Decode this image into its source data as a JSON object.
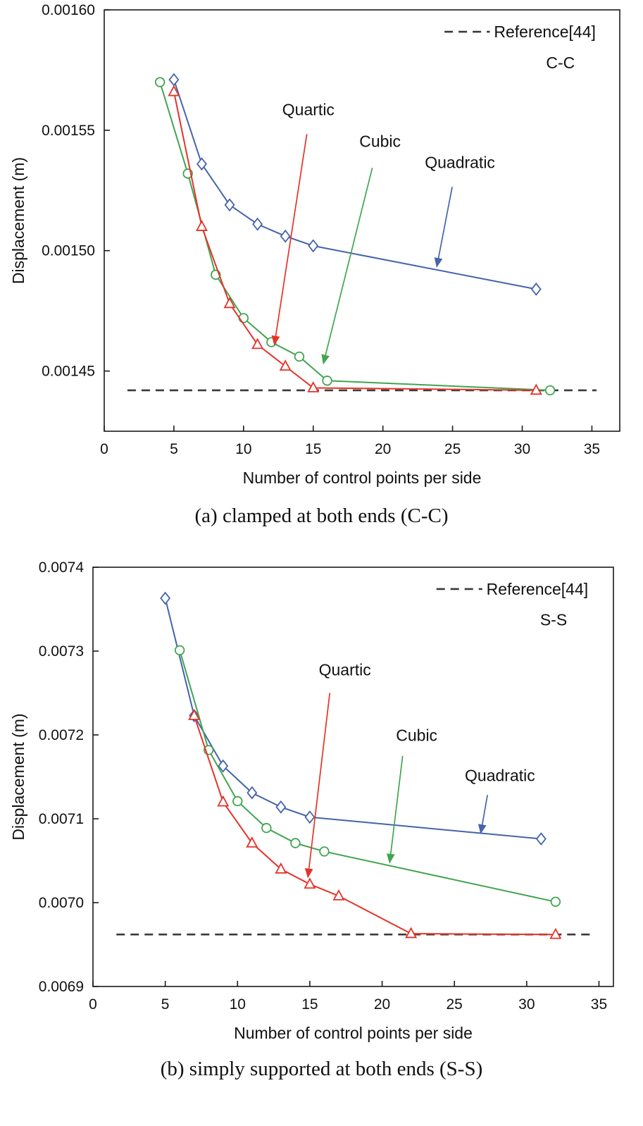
{
  "page": {
    "background": "#ffffff"
  },
  "chart_data": [
    {
      "id": "chart-a",
      "type": "line",
      "caption": "(a) clamped at both ends (C-C)",
      "xlabel": "Number of control points per side",
      "ylabel": "Displacement (m)",
      "xlim": [
        0,
        37
      ],
      "ylim": [
        0.001425,
        0.0016
      ],
      "xticks": [
        0,
        5,
        10,
        15,
        20,
        25,
        30,
        35
      ],
      "yticks": [
        0.00145,
        0.0015,
        0.00155,
        0.0016
      ],
      "ytick_labels": [
        "0.00145",
        "0.00150",
        "0.00155",
        "0.00160"
      ],
      "grid": false,
      "legend": {
        "position": "top-right",
        "reference_label": "Reference[44]",
        "condition_label": "C-C"
      },
      "reference_line": {
        "value": 0.001442,
        "style": "dashed",
        "color": "#3a3a3a"
      },
      "series": [
        {
          "name": "Quadratic",
          "marker": "diamond",
          "color": "#4464ab",
          "x": [
            5,
            7,
            9,
            11,
            13,
            15,
            31
          ],
          "y": [
            0.001571,
            0.001536,
            0.001519,
            0.001511,
            0.001506,
            0.001502,
            0.001484
          ]
        },
        {
          "name": "Cubic",
          "marker": "circle",
          "color": "#41a550",
          "x": [
            4,
            6,
            8,
            10,
            12,
            14,
            16,
            32
          ],
          "y": [
            0.00157,
            0.001532,
            0.00149,
            0.001472,
            0.001462,
            0.001456,
            0.001446,
            0.001442
          ]
        },
        {
          "name": "Quartic",
          "marker": "triangle",
          "color": "#e63229",
          "x": [
            5,
            7,
            9,
            11,
            13,
            15,
            31
          ],
          "y": [
            0.001566,
            0.00151,
            0.001478,
            0.001461,
            0.001452,
            0.001443,
            0.001442
          ]
        }
      ],
      "annotations": [
        {
          "text": "Quartic",
          "color": "#e63229",
          "tx": 0.396,
          "ty": 0.25,
          "ax1": 0.393,
          "ay1": 0.295,
          "ax2": 0.33,
          "ay2": 0.795
        },
        {
          "text": "Cubic",
          "color": "#41a550",
          "tx": 0.535,
          "ty": 0.325,
          "ax1": 0.52,
          "ay1": 0.375,
          "ax2": 0.425,
          "ay2": 0.84
        },
        {
          "text": "Quadratic",
          "color": "#4464ab",
          "tx": 0.69,
          "ty": 0.375,
          "ax1": 0.675,
          "ay1": 0.42,
          "ax2": 0.645,
          "ay2": 0.61
        }
      ]
    },
    {
      "id": "chart-b",
      "type": "line",
      "caption": "(b) simply supported at both ends (S-S)",
      "xlabel": "Number of control points per side",
      "ylabel": "Displacement (m)",
      "xlim": [
        0,
        36
      ],
      "ylim": [
        0.0069,
        0.0074
      ],
      "xticks": [
        0,
        5,
        10,
        15,
        20,
        25,
        30,
        35
      ],
      "yticks": [
        0.0069,
        0.007,
        0.0071,
        0.0072,
        0.0073,
        0.0074
      ],
      "ytick_labels": [
        "0.0069",
        "0.0070",
        "0.0071",
        "0.0072",
        "0.0073",
        "0.0074"
      ],
      "grid": false,
      "legend": {
        "position": "top-right",
        "reference_label": "Reference[44]",
        "condition_label": "S-S"
      },
      "reference_line": {
        "value": 0.006962,
        "style": "dashed",
        "color": "#3a3a3a"
      },
      "series": [
        {
          "name": "Quadratic",
          "marker": "diamond",
          "color": "#4464ab",
          "x": [
            5,
            7,
            9,
            11,
            13,
            15,
            31
          ],
          "y": [
            0.007363,
            0.007223,
            0.007163,
            0.007131,
            0.007114,
            0.007102,
            0.007076
          ]
        },
        {
          "name": "Cubic",
          "marker": "circle",
          "color": "#41a550",
          "x": [
            6,
            8,
            10,
            12,
            14,
            16,
            32
          ],
          "y": [
            0.007301,
            0.007182,
            0.007121,
            0.007089,
            0.007071,
            0.007061,
            0.007001
          ]
        },
        {
          "name": "Quartic",
          "marker": "triangle",
          "color": "#e63229",
          "x": [
            7,
            9,
            11,
            13,
            15,
            17,
            22,
            32
          ],
          "y": [
            0.007223,
            0.00712,
            0.007071,
            0.00704,
            0.007022,
            0.007008,
            0.006963,
            0.006962
          ]
        }
      ],
      "annotations": [
        {
          "text": "Quartic",
          "color": "#e63229",
          "tx": 0.484,
          "ty": 0.258,
          "ax1": 0.455,
          "ay1": 0.3,
          "ax2": 0.413,
          "ay2": 0.74
        },
        {
          "text": "Cubic",
          "color": "#41a550",
          "tx": 0.622,
          "ty": 0.414,
          "ax1": 0.595,
          "ay1": 0.45,
          "ax2": 0.57,
          "ay2": 0.705
        },
        {
          "text": "Quadratic",
          "color": "#4464ab",
          "tx": 0.782,
          "ty": 0.51,
          "ax1": 0.758,
          "ay1": 0.543,
          "ax2": 0.745,
          "ay2": 0.635
        }
      ]
    }
  ]
}
